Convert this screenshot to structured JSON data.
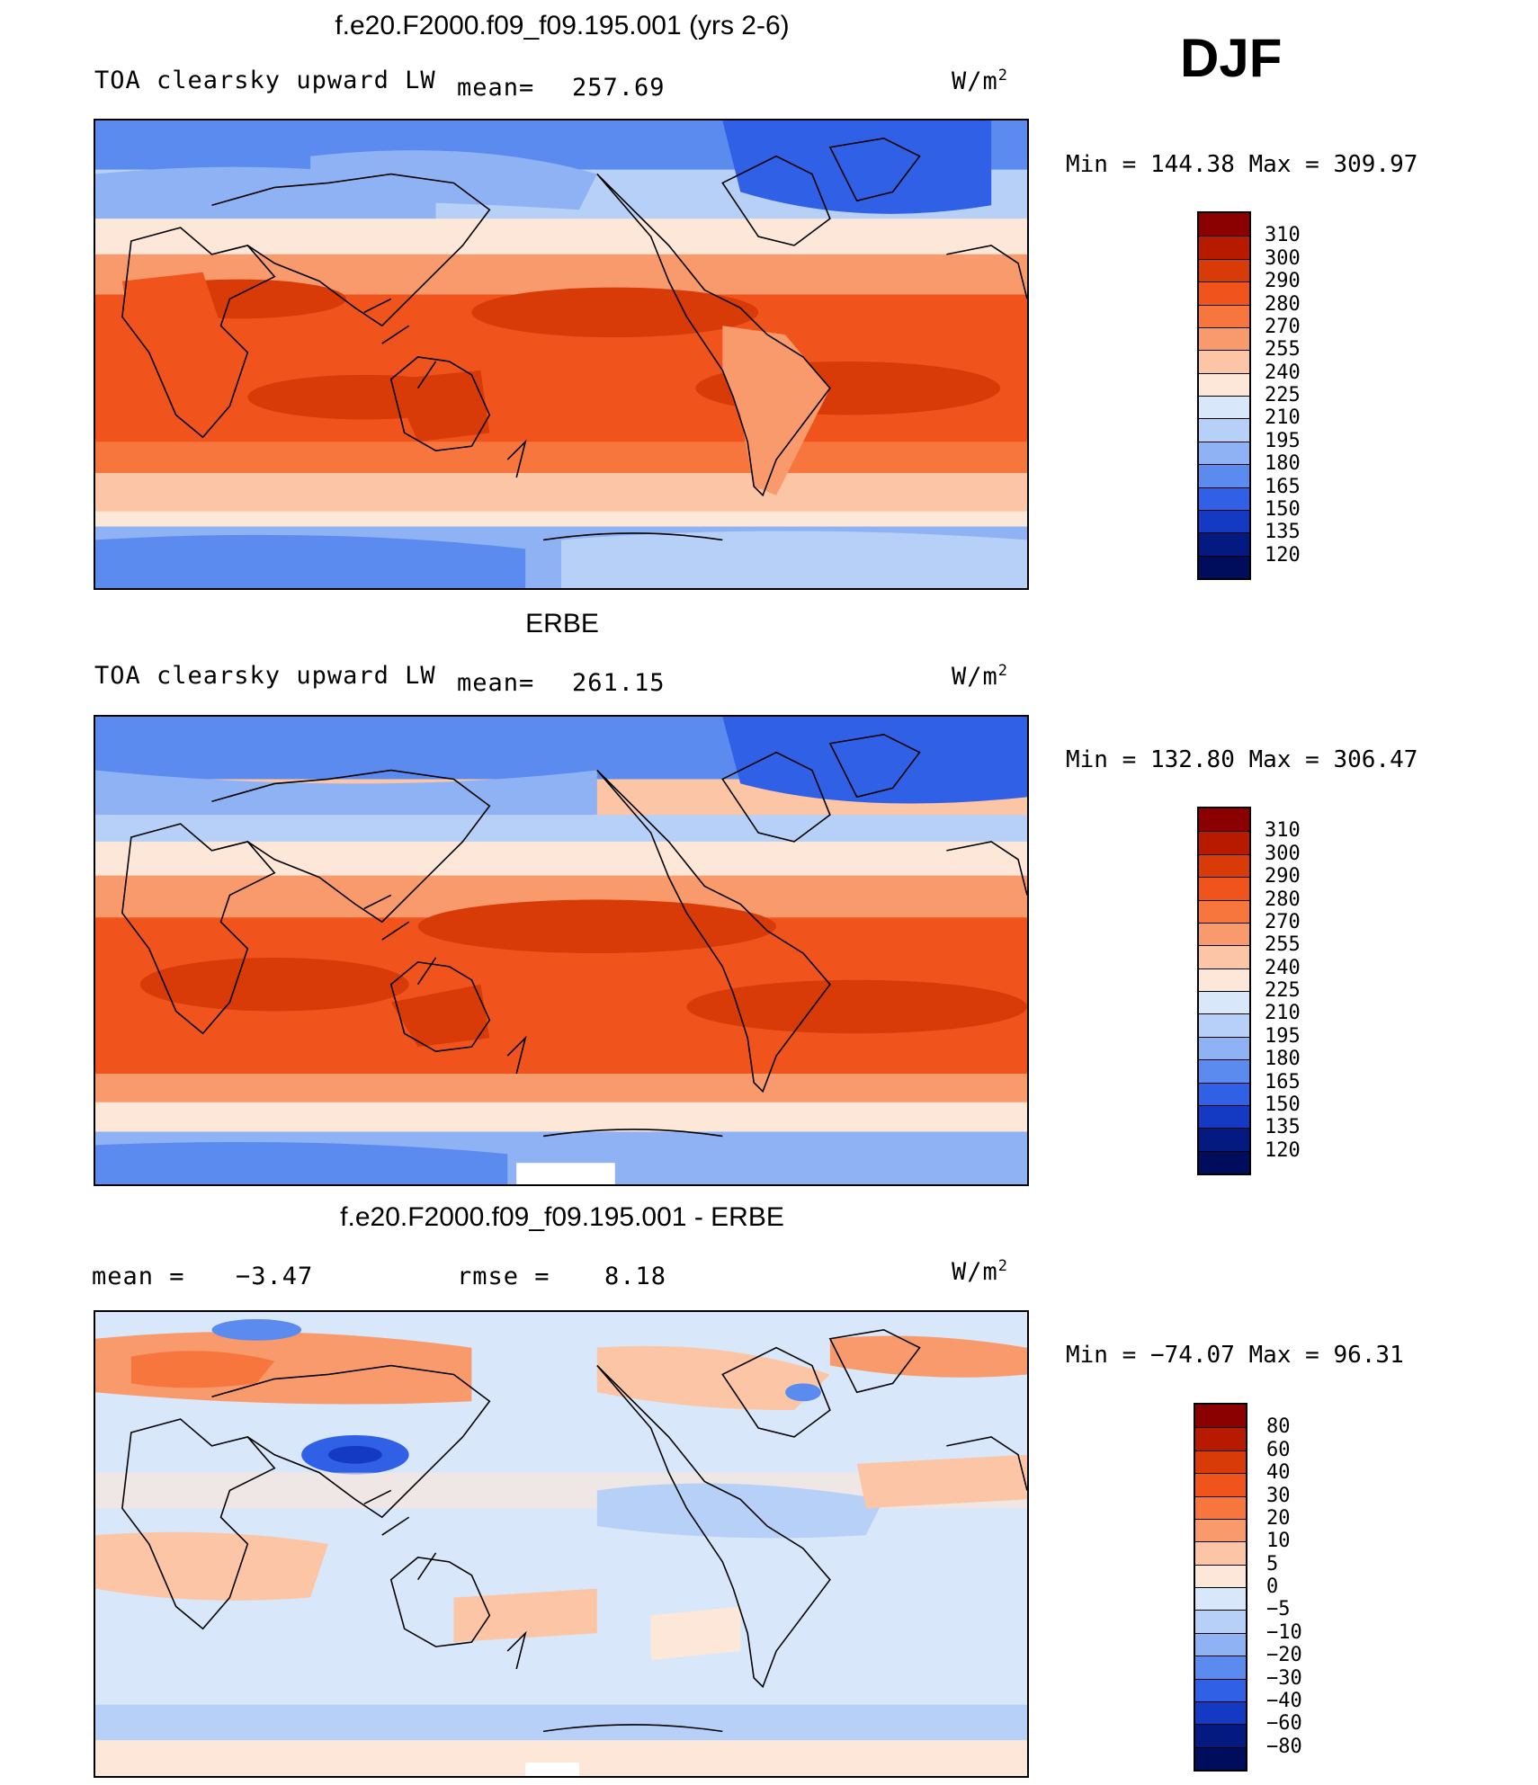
{
  "season": "DJF",
  "units": "W/m",
  "units_sup": "2",
  "panels": [
    {
      "title": "f.e20.F2000.f09_f09.195.001 (yrs 2-6)",
      "variable": "TOA clearsky upward LW",
      "mean_label": "mean=",
      "mean_value": "257.69",
      "min_label": "Min",
      "min_value": "144.38",
      "max_label": "Max",
      "max_value": "309.97",
      "colorbar": {
        "ticks": [
          "310",
          "300",
          "290",
          "280",
          "270",
          "255",
          "240",
          "225",
          "210",
          "195",
          "180",
          "165",
          "150",
          "135",
          "120"
        ],
        "colors": [
          "#8b0000",
          "#b81a00",
          "#d83a08",
          "#f0541c",
          "#f7763e",
          "#f99a6c",
          "#fcc6a6",
          "#fde7d8",
          "#d9e7fb",
          "#b7d0f8",
          "#8eb2f3",
          "#5b8bef",
          "#2f60e6",
          "#1439c2",
          "#041a80",
          "#000c5c"
        ]
      }
    },
    {
      "title": "ERBE",
      "variable": "TOA clearsky upward LW",
      "mean_label": "mean=",
      "mean_value": "261.15",
      "min_label": "Min",
      "min_value": "132.80",
      "max_label": "Max",
      "max_value": "306.47",
      "colorbar": {
        "ticks": [
          "310",
          "300",
          "290",
          "280",
          "270",
          "255",
          "240",
          "225",
          "210",
          "195",
          "180",
          "165",
          "150",
          "135",
          "120"
        ],
        "colors": [
          "#8b0000",
          "#b81a00",
          "#d83a08",
          "#f0541c",
          "#f7763e",
          "#f99a6c",
          "#fcc6a6",
          "#fde7d8",
          "#d9e7fb",
          "#b7d0f8",
          "#8eb2f3",
          "#5b8bef",
          "#2f60e6",
          "#1439c2",
          "#041a80",
          "#000c5c"
        ]
      }
    },
    {
      "title": "f.e20.F2000.f09_f09.195.001 - ERBE",
      "mean_label": "mean =",
      "mean_value": "−3.47",
      "rmse_label": "rmse =",
      "rmse_value": "8.18",
      "min_label": "Min",
      "min_value": "−74.07",
      "max_label": "Max",
      "max_value": "96.31",
      "colorbar": {
        "ticks": [
          "80",
          "60",
          "40",
          "30",
          "20",
          "10",
          "5",
          "0",
          "−5",
          "−10",
          "−20",
          "−30",
          "−40",
          "−60",
          "−80"
        ],
        "colors": [
          "#8b0000",
          "#b81a00",
          "#d83a08",
          "#f0541c",
          "#f7763e",
          "#f99a6c",
          "#fcc6a6",
          "#fde7d8",
          "#d9e7fb",
          "#b7d0f8",
          "#8eb2f3",
          "#5b8bef",
          "#2f60e6",
          "#1439c2",
          "#041a80",
          "#000c5c"
        ]
      }
    }
  ]
}
